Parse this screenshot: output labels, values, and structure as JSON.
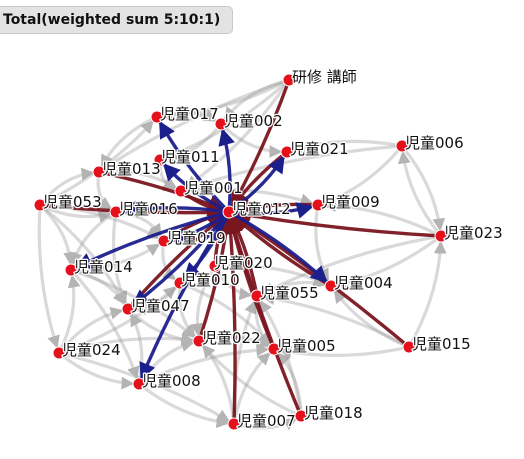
{
  "header": {
    "title": "Total(weighted sum 5:10:1)"
  },
  "colors": {
    "node": "#e4101c",
    "edge_gray": "#9a9a9a",
    "edge_blue": "#1b1f8c",
    "edge_dark_red": "#7a1620"
  },
  "graph": {
    "nodes": [
      {
        "id": "teacher",
        "label": "研修 講師"
      },
      {
        "id": "c017",
        "label": "児童017"
      },
      {
        "id": "c002",
        "label": "児童002"
      },
      {
        "id": "c006",
        "label": "児童006"
      },
      {
        "id": "c021",
        "label": "児童021"
      },
      {
        "id": "c011",
        "label": "児童011"
      },
      {
        "id": "c013",
        "label": "児童013"
      },
      {
        "id": "c001",
        "label": "児童001"
      },
      {
        "id": "c009",
        "label": "児童009"
      },
      {
        "id": "c053",
        "label": "児童053"
      },
      {
        "id": "c016",
        "label": "児童016"
      },
      {
        "id": "c012",
        "label": "児童012"
      },
      {
        "id": "c023",
        "label": "児童023"
      },
      {
        "id": "c019",
        "label": "児童019"
      },
      {
        "id": "c014",
        "label": "児童014"
      },
      {
        "id": "c020",
        "label": "児童020"
      },
      {
        "id": "c010",
        "label": "児童010"
      },
      {
        "id": "c004",
        "label": "児童004"
      },
      {
        "id": "c055",
        "label": "児童055"
      },
      {
        "id": "c047",
        "label": "児童047"
      },
      {
        "id": "c022",
        "label": "児童022"
      },
      {
        "id": "c015",
        "label": "児童015"
      },
      {
        "id": "c005",
        "label": "児童005"
      },
      {
        "id": "c024",
        "label": "児童024"
      },
      {
        "id": "c008",
        "label": "児童008"
      },
      {
        "id": "c007",
        "label": "児童007"
      },
      {
        "id": "c018",
        "label": "児童018"
      }
    ],
    "edges_blue": [
      {
        "from": "c012",
        "to": "c017"
      },
      {
        "from": "c012",
        "to": "c002"
      },
      {
        "from": "c012",
        "to": "c011"
      },
      {
        "from": "c012",
        "to": "c016"
      },
      {
        "from": "c012",
        "to": "c019"
      },
      {
        "from": "c012",
        "to": "c014"
      },
      {
        "from": "c012",
        "to": "c047"
      },
      {
        "from": "c012",
        "to": "c008"
      },
      {
        "from": "c012",
        "to": "c004"
      },
      {
        "from": "c012",
        "to": "c009"
      },
      {
        "from": "c012",
        "to": "c010"
      },
      {
        "from": "c012",
        "to": "c021"
      }
    ],
    "edges_dark_red": [
      {
        "from": "teacher",
        "to": "c012"
      },
      {
        "from": "c021",
        "to": "c012"
      },
      {
        "from": "c013",
        "to": "c012"
      },
      {
        "from": "c053",
        "to": "c012"
      },
      {
        "from": "c023",
        "to": "c012"
      },
      {
        "from": "c015",
        "to": "c012"
      },
      {
        "from": "c018",
        "to": "c012"
      },
      {
        "from": "c007",
        "to": "c012"
      },
      {
        "from": "c005",
        "to": "c012"
      },
      {
        "from": "c022",
        "to": "c012"
      },
      {
        "from": "c004",
        "to": "c012"
      },
      {
        "from": "c001",
        "to": "c012"
      },
      {
        "from": "c020",
        "to": "c012"
      },
      {
        "from": "c009",
        "to": "c012"
      },
      {
        "from": "c019",
        "to": "c012"
      },
      {
        "from": "c055",
        "to": "c012"
      },
      {
        "from": "c047",
        "to": "c012"
      }
    ],
    "edges_gray": [
      [
        "c053",
        "c013"
      ],
      [
        "c053",
        "c016"
      ],
      [
        "c053",
        "c014"
      ],
      [
        "c053",
        "c024"
      ],
      [
        "c053",
        "c019"
      ],
      [
        "c053",
        "c017"
      ],
      [
        "c053",
        "c047"
      ],
      [
        "c024",
        "c014"
      ],
      [
        "c024",
        "c047"
      ],
      [
        "c024",
        "c008"
      ],
      [
        "c024",
        "c022"
      ],
      [
        "c024",
        "c010"
      ],
      [
        "c024",
        "c007"
      ],
      [
        "c008",
        "c047"
      ],
      [
        "c008",
        "c022"
      ],
      [
        "c008",
        "c007"
      ],
      [
        "c008",
        "c005"
      ],
      [
        "c007",
        "c022"
      ],
      [
        "c007",
        "c005"
      ],
      [
        "c007",
        "c018"
      ],
      [
        "c007",
        "c055"
      ],
      [
        "c018",
        "c005"
      ],
      [
        "c018",
        "c022"
      ],
      [
        "c018",
        "c055"
      ],
      [
        "c015",
        "c004"
      ],
      [
        "c015",
        "c055"
      ],
      [
        "c015",
        "c005"
      ],
      [
        "c015",
        "c023"
      ],
      [
        "c023",
        "c004"
      ],
      [
        "c023",
        "c009"
      ],
      [
        "c023",
        "c006"
      ],
      [
        "c023",
        "c055"
      ],
      [
        "c006",
        "c009"
      ],
      [
        "c006",
        "c021"
      ],
      [
        "c006",
        "c023"
      ],
      [
        "c006",
        "c001"
      ],
      [
        "teacher",
        "c017"
      ],
      [
        "teacher",
        "c002"
      ],
      [
        "teacher",
        "c011"
      ],
      [
        "teacher",
        "c013"
      ],
      [
        "teacher",
        "c001"
      ],
      [
        "c017",
        "c013"
      ],
      [
        "c017",
        "c002"
      ],
      [
        "c002",
        "c021"
      ],
      [
        "c002",
        "c011"
      ],
      [
        "c013",
        "c016"
      ],
      [
        "c013",
        "c001"
      ],
      [
        "c016",
        "c014"
      ],
      [
        "c016",
        "c019"
      ],
      [
        "c016",
        "c047"
      ],
      [
        "c014",
        "c047"
      ],
      [
        "c014",
        "c019"
      ],
      [
        "c014",
        "c022"
      ],
      [
        "c020",
        "c055"
      ],
      [
        "c020",
        "c004"
      ],
      [
        "c020",
        "c022"
      ],
      [
        "c010",
        "c047"
      ],
      [
        "c010",
        "c022"
      ],
      [
        "c010",
        "c005"
      ],
      [
        "c019",
        "c010"
      ],
      [
        "c055",
        "c004"
      ],
      [
        "c055",
        "c005"
      ],
      [
        "c001",
        "c009"
      ],
      [
        "c009",
        "c004"
      ],
      [
        "c022",
        "c005"
      ],
      [
        "c011",
        "c001"
      ],
      [
        "c014",
        "c008"
      ],
      [
        "c047",
        "c022"
      ]
    ]
  }
}
